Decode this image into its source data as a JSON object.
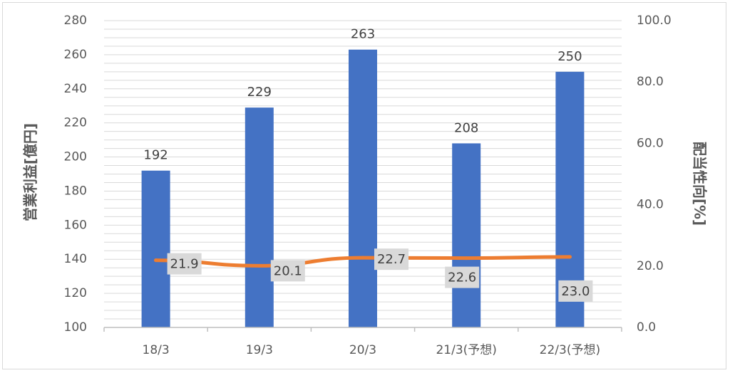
{
  "chart_data": {
    "type": "bar+line",
    "categories": [
      "18/3",
      "19/3",
      "20/3",
      "21/3(予想)",
      "22/3(予想)"
    ],
    "series": [
      {
        "values": [
          192,
          229,
          263,
          208,
          250
        ],
        "axis": "left",
        "color": "#4472c4",
        "kind": "bar"
      },
      {
        "values": [
          21.9,
          20.1,
          22.7,
          22.6,
          23.0
        ],
        "axis": "right",
        "color": "#ed7d31",
        "kind": "line"
      }
    ],
    "bar_value_labels": [
      "192",
      "229",
      "263",
      "208",
      "250"
    ],
    "line_value_labels": [
      "21.9",
      "20.1",
      "22.7",
      "22.6",
      "23.0"
    ],
    "ylabel_left": "営業利益[億円]",
    "ylabel_right": "配当性向[%]",
    "ylim_left": [
      100,
      280
    ],
    "ylim_right": [
      0,
      100
    ],
    "yticks_left": [
      "100",
      "120",
      "140",
      "160",
      "180",
      "200",
      "220",
      "240",
      "260",
      "280"
    ],
    "yticks_right": [
      "0.0",
      "20.0",
      "40.0",
      "60.0",
      "80.0",
      "100.0"
    ],
    "grid": true,
    "legend": "none",
    "colors": {
      "label_box": "#d9d9d9",
      "grid": "#d9d9d9",
      "text": "#595959"
    }
  }
}
